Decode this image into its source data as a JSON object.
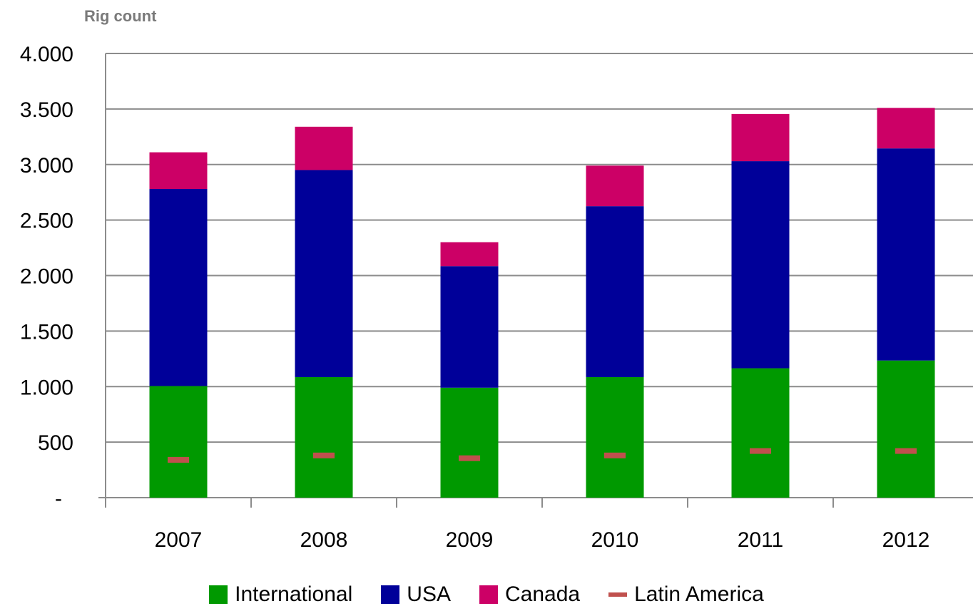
{
  "chart_data": {
    "type": "bar",
    "stacked": true,
    "ylabel": "Rig count",
    "ylim": [
      0,
      4000
    ],
    "yticks": [
      {
        "value": 0,
        "label": "-"
      },
      {
        "value": 500,
        "label": "500"
      },
      {
        "value": 1000,
        "label": "1.000"
      },
      {
        "value": 1500,
        "label": "1.500"
      },
      {
        "value": 2000,
        "label": "2.000"
      },
      {
        "value": 2500,
        "label": "2.500"
      },
      {
        "value": 3000,
        "label": "3.000"
      },
      {
        "value": 3500,
        "label": "3.500"
      },
      {
        "value": 4000,
        "label": "4.000"
      }
    ],
    "grid": true,
    "legend_position": "bottom",
    "categories": [
      "2007",
      "2008",
      "2009",
      "2010",
      "2011",
      "2012"
    ],
    "series": [
      {
        "name": "International",
        "kind": "bar",
        "color": "#009900",
        "values": [
          1005,
          1085,
          990,
          1085,
          1165,
          1235
        ]
      },
      {
        "name": "USA",
        "kind": "bar",
        "color": "#000099",
        "values": [
          1775,
          1865,
          1095,
          1540,
          1865,
          1910
        ]
      },
      {
        "name": "Canada",
        "kind": "bar",
        "color": "#cc0066",
        "values": [
          330,
          390,
          215,
          365,
          425,
          365
        ]
      },
      {
        "name": "Latin America",
        "kind": "marker",
        "color": "#c0504d",
        "values": [
          340,
          380,
          355,
          380,
          420,
          420
        ]
      }
    ]
  }
}
